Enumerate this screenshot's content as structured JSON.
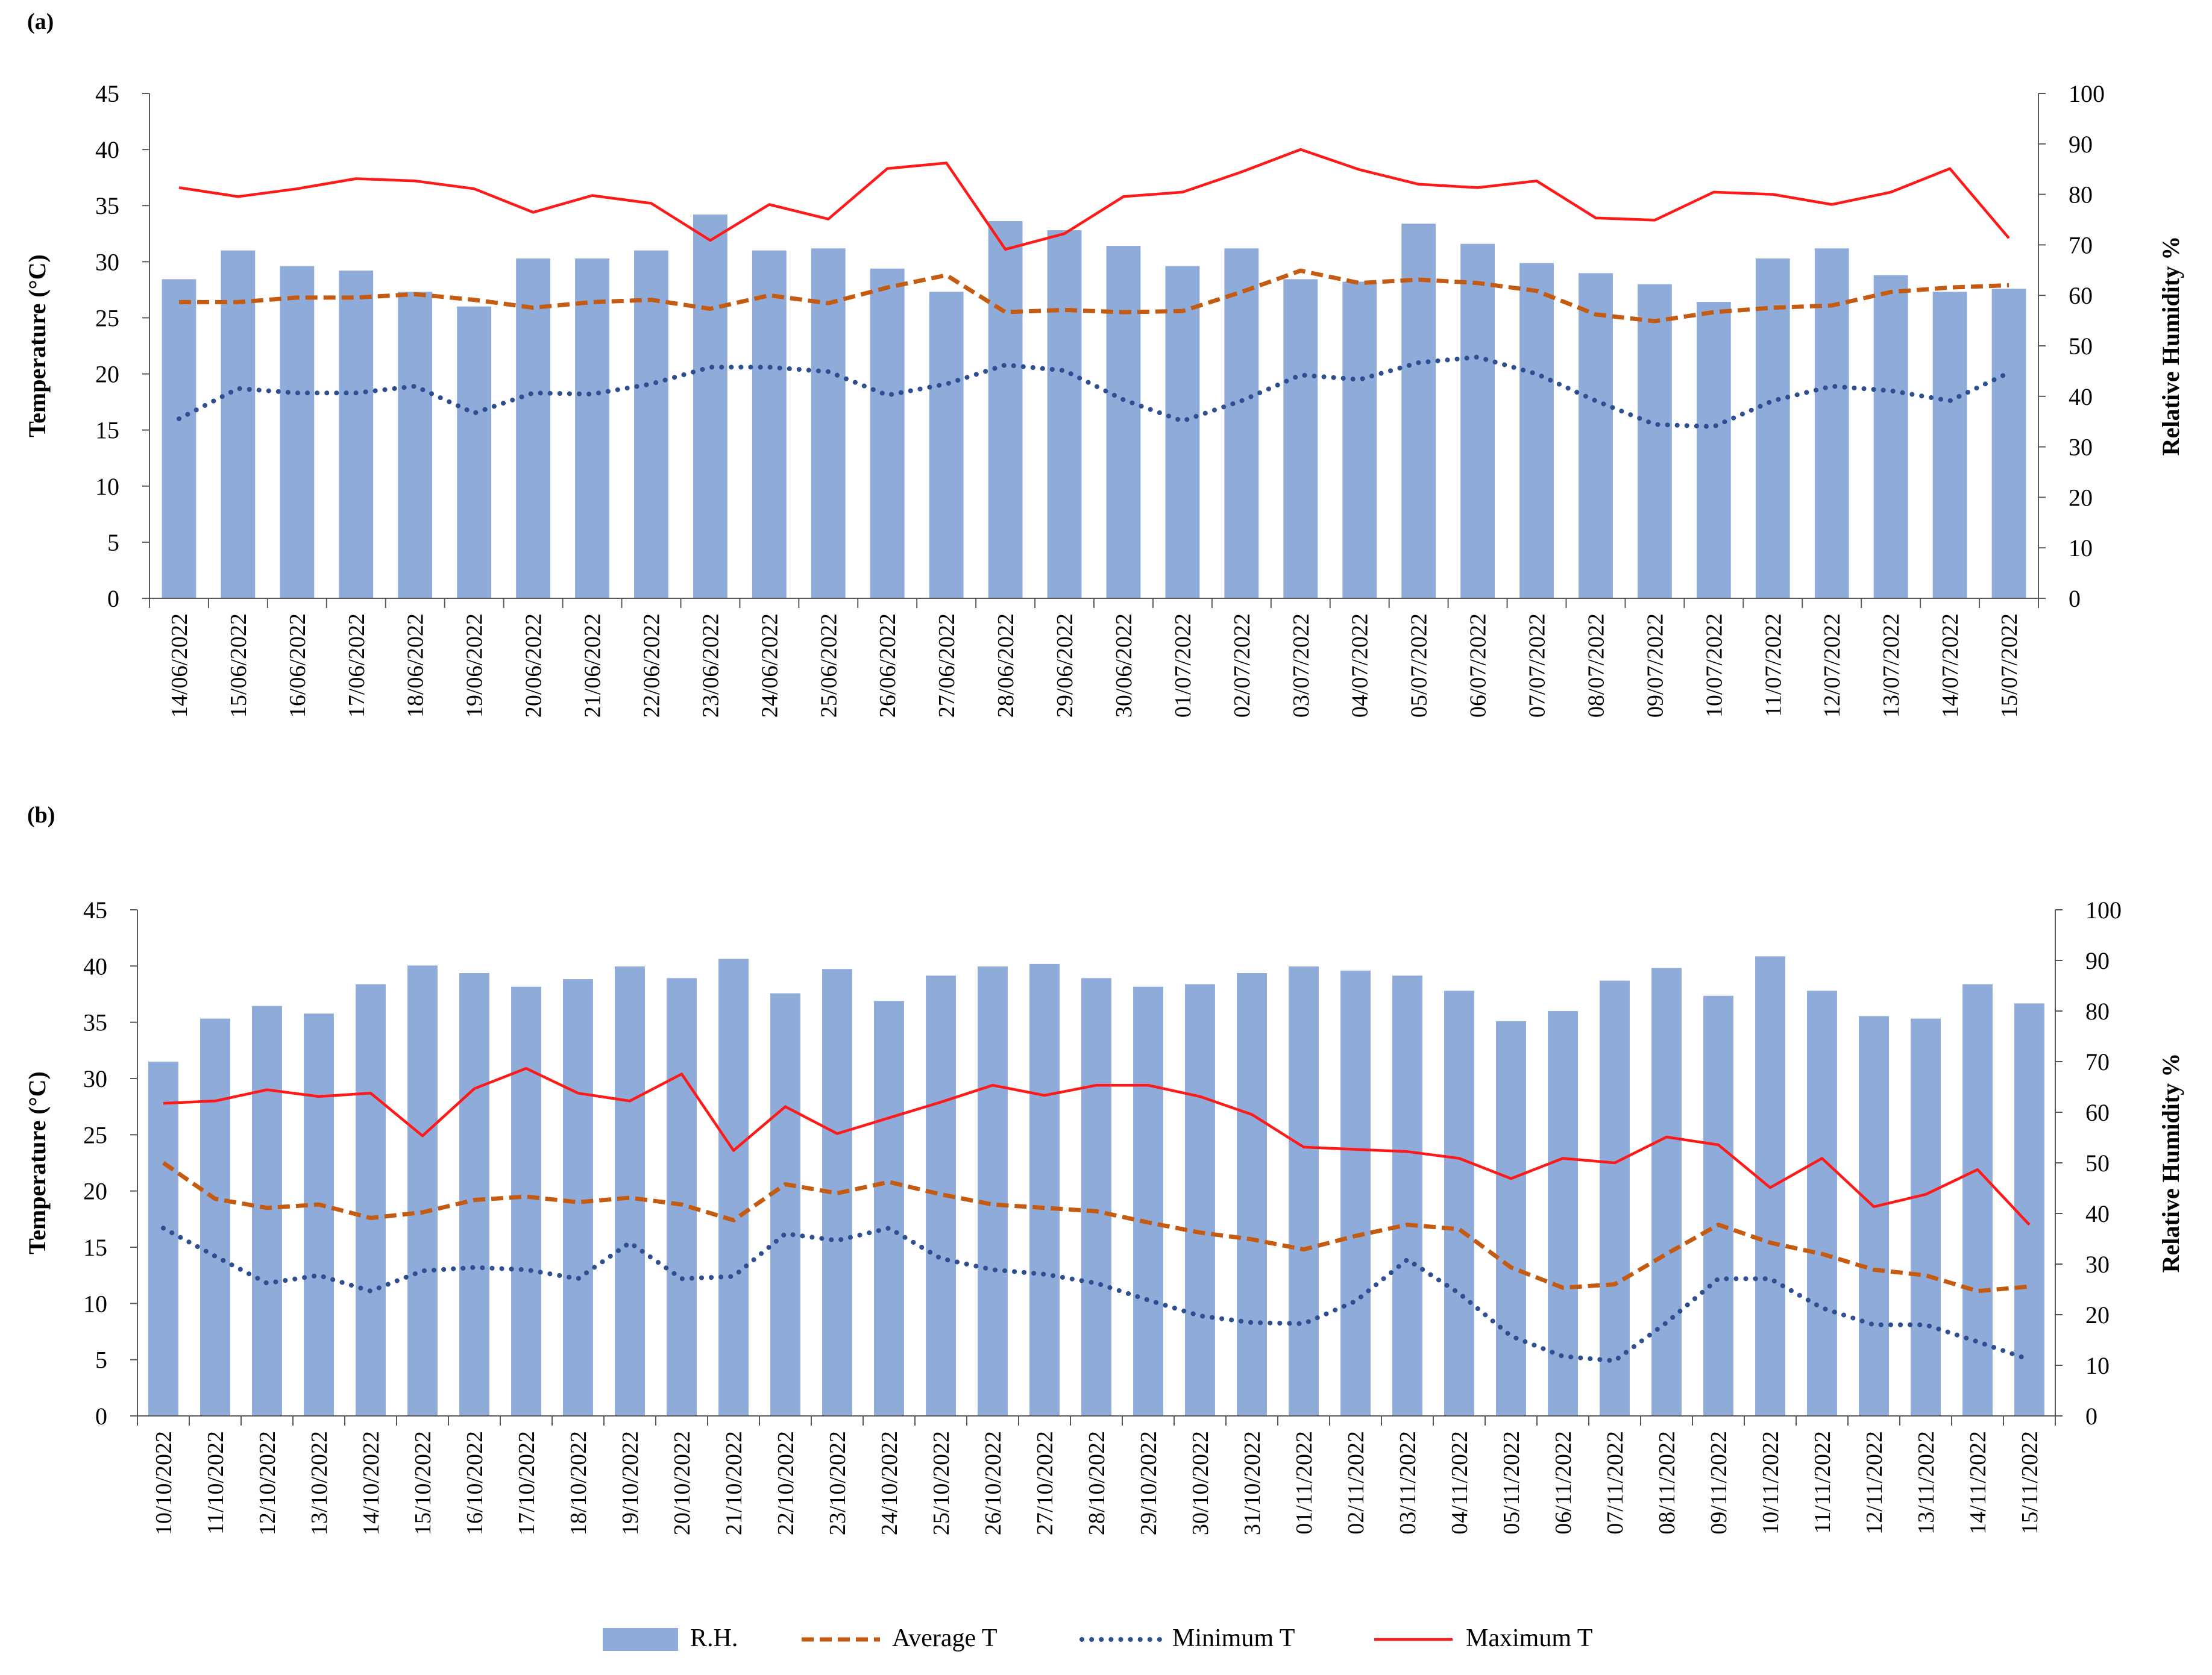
{
  "chart_data": [
    {
      "panel_label": "(a)",
      "type": "bar+line",
      "ylabel": "Temperature (°C)",
      "y2label": "Relative Humidity  %",
      "ylim": [
        0,
        45
      ],
      "y2lim": [
        0,
        100
      ],
      "yticks": [
        "0",
        "5",
        "10",
        "15",
        "20",
        "25",
        "30",
        "35",
        "40",
        "45"
      ],
      "y2ticks": [
        "0",
        "10",
        "20",
        "30",
        "40",
        "50",
        "60",
        "70",
        "80",
        "90",
        "100"
      ],
      "categories": [
        "14/06/2022",
        "15/06/2022",
        "16/06/2022",
        "17/06/2022",
        "18/06/2022",
        "19/06/2022",
        "20/06/2022",
        "21/06/2022",
        "22/06/2022",
        "23/06/2022",
        "24/06/2022",
        "25/06/2022",
        "26/06/2022",
        "27/06/2022",
        "28/06/2022",
        "29/06/2022",
        "30/06/2022",
        "01/07/2022",
        "02/07/2022",
        "03/07/2022",
        "04/07/2022",
        "05/07/2022",
        "06/07/2022",
        "07/07/2022",
        "08/07/2022",
        "09/07/2022",
        "10/07/2022",
        "11/07/2022",
        "12/07/2022",
        "13/07/2022",
        "14/07/2022",
        "15/07/2022"
      ],
      "series": [
        {
          "name": "R.H.",
          "axis": "right",
          "type": "bar",
          "values": [
            63.2,
            68.9,
            65.8,
            64.9,
            60.7,
            57.8,
            67.3,
            67.3,
            68.9,
            76.0,
            68.9,
            69.3,
            65.3,
            60.7,
            74.7,
            72.9,
            69.8,
            65.8,
            69.3,
            63.2,
            62.7,
            74.2,
            70.2,
            66.4,
            64.4,
            62.2,
            58.7,
            67.3,
            69.3,
            64.0,
            60.7,
            61.3
          ]
        },
        {
          "name": "Average  T",
          "axis": "left",
          "type": "line",
          "values": [
            26.4,
            26.4,
            26.8,
            26.8,
            27.1,
            26.6,
            25.9,
            26.4,
            26.6,
            25.8,
            27.0,
            26.3,
            27.7,
            28.8,
            25.5,
            25.7,
            25.5,
            25.6,
            27.3,
            29.2,
            28.1,
            28.4,
            28.1,
            27.4,
            25.3,
            24.7,
            25.5,
            25.9,
            26.1,
            27.3,
            27.7,
            27.9
          ]
        },
        {
          "name": "Minimum  T",
          "axis": "left",
          "type": "line",
          "values": [
            16.0,
            18.7,
            18.3,
            18.3,
            18.9,
            16.5,
            18.3,
            18.2,
            19.1,
            20.6,
            20.6,
            20.2,
            18.1,
            19.1,
            20.8,
            20.3,
            17.7,
            15.8,
            17.6,
            19.9,
            19.5,
            21.0,
            21.5,
            20.0,
            17.6,
            15.5,
            15.3,
            17.6,
            18.9,
            18.5,
            17.6,
            20.1
          ]
        },
        {
          "name": "Maximum T",
          "axis": "left",
          "type": "line",
          "values": [
            36.6,
            35.8,
            36.5,
            37.4,
            37.2,
            36.5,
            34.4,
            35.9,
            35.2,
            31.9,
            35.1,
            33.8,
            38.3,
            38.8,
            31.1,
            32.5,
            35.8,
            36.2,
            38.0,
            40.0,
            38.2,
            36.9,
            36.6,
            37.2,
            33.9,
            33.7,
            36.2,
            36.0,
            35.1,
            36.2,
            38.3,
            32.1
          ]
        }
      ]
    },
    {
      "panel_label": "(b)",
      "type": "bar+line",
      "ylabel": "Temperature (°C)",
      "y2label": "Relative Humidity  %",
      "ylim": [
        0,
        45
      ],
      "y2lim": [
        0,
        100
      ],
      "yticks": [
        "0",
        "5",
        "10",
        "15",
        "20",
        "25",
        "30",
        "35",
        "40",
        "45"
      ],
      "y2ticks": [
        "0",
        "10",
        "20",
        "30",
        "40",
        "50",
        "60",
        "70",
        "80",
        "90",
        "100"
      ],
      "categories": [
        "10/10/2022",
        "11/10/2022",
        "12/10/2022",
        "13/10/2022",
        "14/10/2022",
        "15/10/2022",
        "16/10/2022",
        "17/10/2022",
        "18/10/2022",
        "19/10/2022",
        "20/10/2022",
        "21/10/2022",
        "22/10/2022",
        "23/10/2022",
        "24/10/2022",
        "25/10/2022",
        "26/10/2022",
        "27/10/2022",
        "28/10/2022",
        "29/10/2022",
        "30/10/2022",
        "31/10/2022",
        "01/11/2022",
        "02/11/2022",
        "03/11/2022",
        "04/11/2022",
        "05/11/2022",
        "06/11/2022",
        "07/11/2022",
        "08/11/2022",
        "09/11/2022",
        "10/11/2022",
        "11/11/2022",
        "12/11/2022",
        "13/11/2022",
        "14/11/2022",
        "15/11/2022"
      ],
      "series": [
        {
          "name": "R.H.",
          "axis": "right",
          "type": "bar",
          "values": [
            70.0,
            78.5,
            81.0,
            79.5,
            85.3,
            89.0,
            87.5,
            84.8,
            86.3,
            88.8,
            86.5,
            90.3,
            83.5,
            88.3,
            82.0,
            87.0,
            88.8,
            89.3,
            86.5,
            84.8,
            85.3,
            87.5,
            88.8,
            88.0,
            87.0,
            84.0,
            78.0,
            80.0,
            86.0,
            88.5,
            83.0,
            90.8,
            84.0,
            79.0,
            78.5,
            85.3,
            81.5
          ]
        },
        {
          "name": "Average  T",
          "axis": "left",
          "type": "line",
          "values": [
            22.5,
            19.3,
            18.5,
            18.8,
            17.6,
            18.1,
            19.2,
            19.5,
            19.0,
            19.4,
            18.8,
            17.4,
            20.6,
            19.8,
            20.8,
            19.7,
            18.8,
            18.5,
            18.2,
            17.2,
            16.3,
            15.7,
            14.8,
            16.0,
            17.0,
            16.6,
            13.2,
            11.4,
            11.7,
            14.4,
            17.0,
            15.4,
            14.4,
            13.0,
            12.5,
            11.1,
            11.5
          ]
        },
        {
          "name": "Minimum  T",
          "axis": "left",
          "type": "line",
          "values": [
            16.7,
            14.2,
            11.8,
            12.5,
            11.1,
            12.9,
            13.2,
            13.0,
            12.2,
            15.4,
            12.2,
            12.4,
            16.2,
            15.6,
            16.7,
            14.0,
            13.0,
            12.6,
            11.8,
            10.3,
            8.9,
            8.3,
            8.2,
            10.2,
            13.9,
            10.9,
            7.1,
            5.3,
            4.9,
            8.3,
            12.2,
            12.2,
            9.6,
            8.1,
            8.1,
            6.6,
            5.0
          ]
        },
        {
          "name": "Maximum T",
          "axis": "left",
          "type": "line",
          "values": [
            27.8,
            28.0,
            29.0,
            28.4,
            28.7,
            24.9,
            29.1,
            30.9,
            28.7,
            28.0,
            30.4,
            23.6,
            27.5,
            25.1,
            26.5,
            27.9,
            29.4,
            28.5,
            29.4,
            29.4,
            28.4,
            26.8,
            23.9,
            23.7,
            23.5,
            22.9,
            21.1,
            22.9,
            22.5,
            24.8,
            24.1,
            20.3,
            22.9,
            18.6,
            19.7,
            21.9,
            17.0
          ]
        }
      ]
    }
  ],
  "legend": [
    {
      "key": "rh",
      "label": "R.H."
    },
    {
      "key": "avg",
      "label": "Average  T"
    },
    {
      "key": "min",
      "label": "Minimum  T"
    },
    {
      "key": "max",
      "label": "Maximum T"
    }
  ],
  "colors": {
    "bar": "#8eabd9",
    "average": "#c55a11",
    "minimum": "#2e4f8f",
    "maximum": "#ff1a1a",
    "axis": "#595959"
  }
}
